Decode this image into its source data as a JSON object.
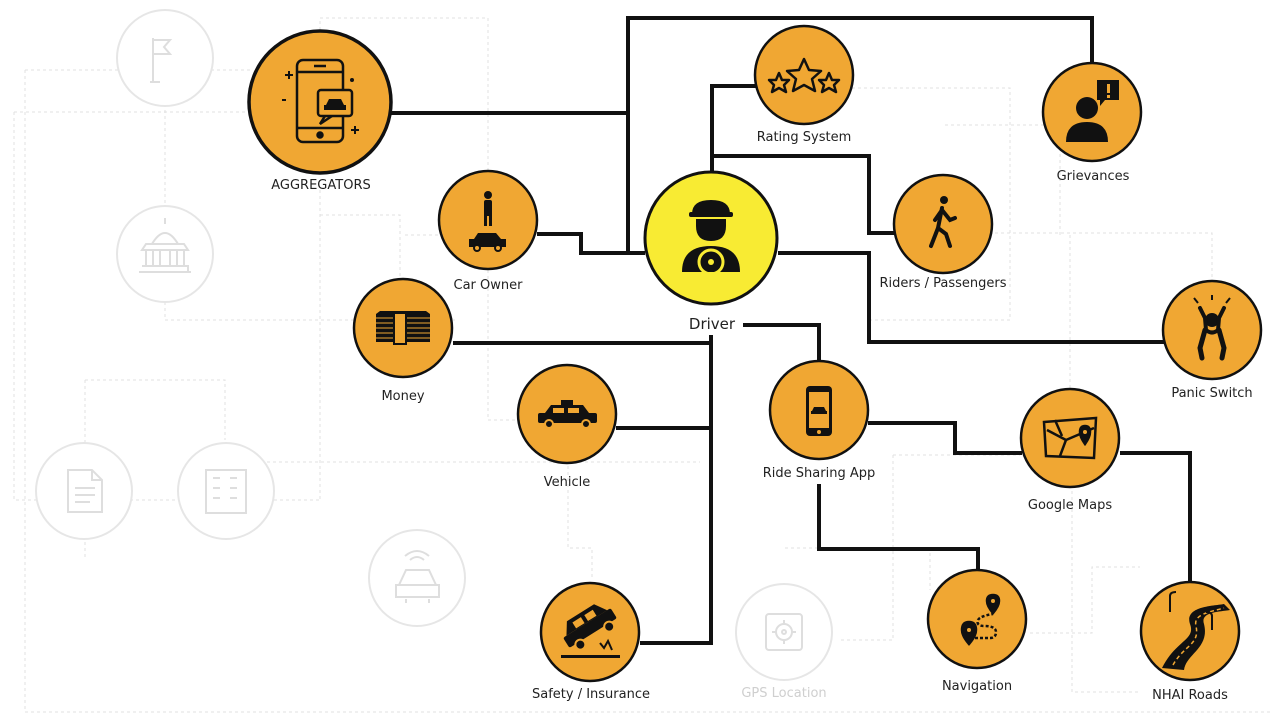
{
  "nodes": {
    "driver": {
      "label": "Driver"
    },
    "aggregators": {
      "label": "AGGREGATORS"
    },
    "rating": {
      "label": "Rating System"
    },
    "grievances": {
      "label": "Grievances"
    },
    "car_owner": {
      "label": "Car Owner"
    },
    "riders": {
      "label": "Riders / Passengers"
    },
    "money": {
      "label": "Money"
    },
    "panic": {
      "label": "Panic Switch"
    },
    "vehicle": {
      "label": "Vehicle"
    },
    "ride_app": {
      "label": "Ride Sharing App"
    },
    "google_maps": {
      "label": "Google Maps"
    },
    "safety": {
      "label": "Safety / Insurance"
    },
    "gps": {
      "label": "GPS  Location"
    },
    "navigation": {
      "label": "Navigation"
    },
    "nhai": {
      "label": "NHAI Roads"
    }
  },
  "colors": {
    "node_fill": "#F0A733",
    "center_fill": "#F8EB33",
    "line": "#111111",
    "faded": "#e2e2e2"
  }
}
